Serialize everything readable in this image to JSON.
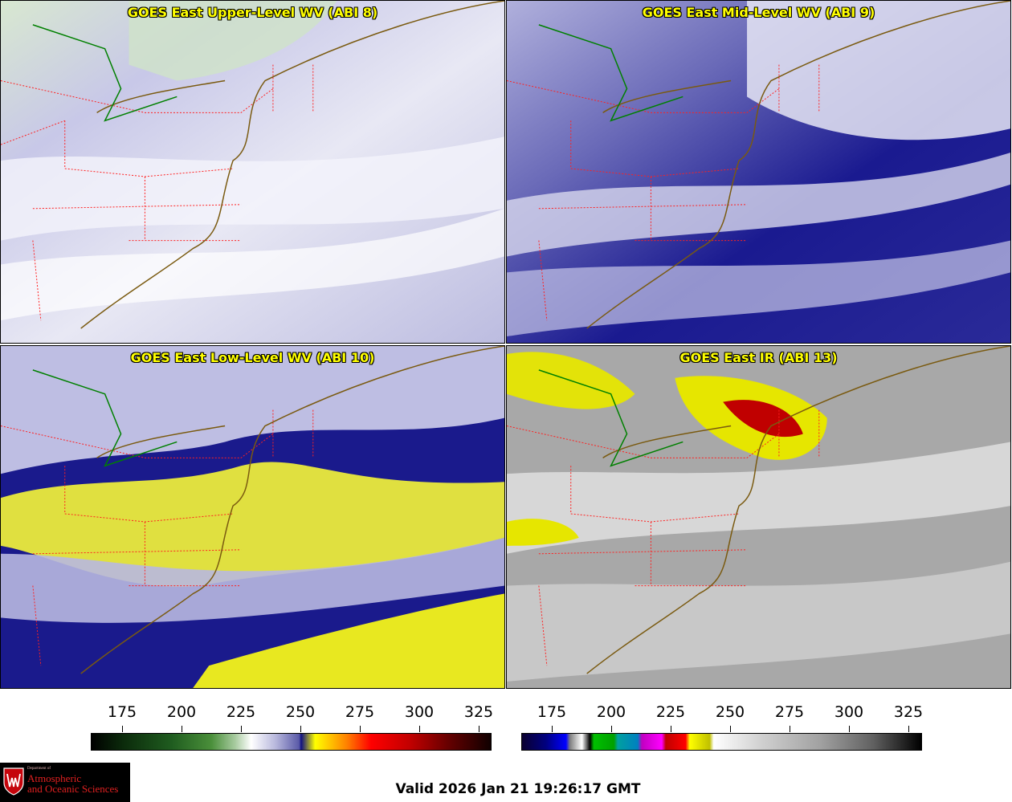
{
  "panels": [
    {
      "title": "GOES East Upper-Level WV (ABI 8)"
    },
    {
      "title": "GOES East Mid-Level WV (ABI 9)"
    },
    {
      "title": "GOES East Low-Level WV (ABI 10)"
    },
    {
      "title": "GOES East IR (ABI 13)"
    }
  ],
  "colorbars": [
    {
      "ticks": [
        "175",
        "200",
        "225",
        "250",
        "275",
        "300",
        "325"
      ]
    },
    {
      "ticks": [
        "175",
        "200",
        "225",
        "250",
        "275",
        "300",
        "325"
      ]
    }
  ],
  "logo": {
    "line1": "Department of",
    "line2": "Atmospheric",
    "line3": "and Oceanic Sciences"
  },
  "valid_time": "Valid 2026 Jan 21 19:26:17 GMT",
  "colors": {
    "title_text": "#ffff00",
    "state_borders": "#ff2020",
    "coastline": "#7a5a10",
    "great_lakes_line": "#008000"
  }
}
